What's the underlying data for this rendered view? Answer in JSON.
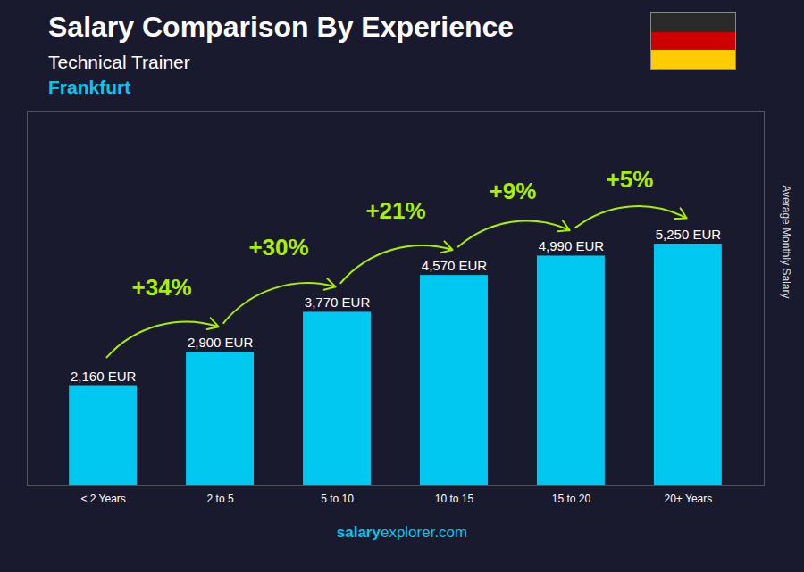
{
  "chart_data": {
    "type": "bar",
    "title": "Salary Comparison By Experience",
    "subtitles": [
      "Technical Trainer",
      "Frankfurt"
    ],
    "ylabel": "Average Monthly Salary",
    "categories": [
      "< 2 Years",
      "2 to 5",
      "5 to 10",
      "10 to 15",
      "15 to 20",
      "20+ Years"
    ],
    "values": [
      2160,
      2900,
      3770,
      4570,
      4990,
      5250
    ],
    "value_labels": [
      "2,160 EUR",
      "2,900 EUR",
      "3,770 EUR",
      "4,570 EUR",
      "4,990 EUR",
      "5,250 EUR"
    ],
    "data_labels": true,
    "color": "#00c8f0",
    "ylim": [
      0,
      8137.5
    ],
    "tick_labels": "x",
    "annotations": [
      {
        "text": "+34%",
        "from": "< 2 Years",
        "to": "2 to 5"
      },
      {
        "text": "+30%",
        "from": "2 to 5",
        "to": "5 to 10"
      },
      {
        "text": "+21%",
        "from": "5 to 10",
        "to": "10 to 15"
      },
      {
        "text": "+9%",
        "from": "10 to 15",
        "to": "15 to 20"
      },
      {
        "text": "+5%",
        "from": "15 to 20",
        "to": "20+ Years"
      }
    ],
    "footer": [
      "salary",
      "explorer.com"
    ]
  }
}
